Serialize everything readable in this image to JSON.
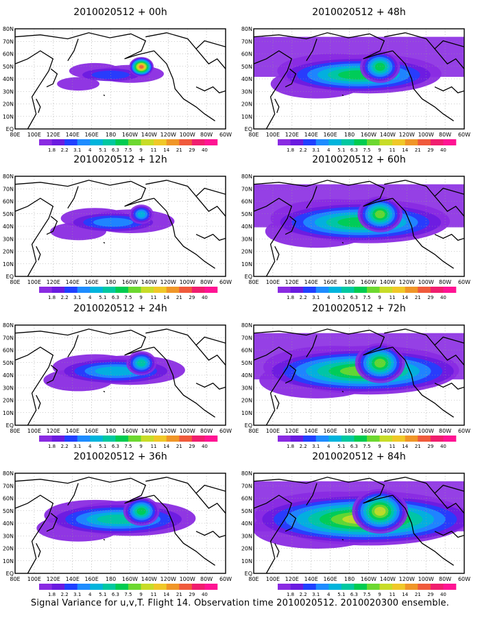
{
  "panels": [
    {
      "title": "2010020512 + 00h",
      "intensity": 0.05
    },
    {
      "title": "2010020512 + 12h",
      "intensity": 0.2
    },
    {
      "title": "2010020512 + 24h",
      "intensity": 0.35
    },
    {
      "title": "2010020512 + 36h",
      "intensity": 0.5
    },
    {
      "title": "2010020512 + 48h",
      "intensity": 0.6
    },
    {
      "title": "2010020512 + 60h",
      "intensity": 0.72
    },
    {
      "title": "2010020512 + 72h",
      "intensity": 0.85
    },
    {
      "title": "2010020512 + 84h",
      "intensity": 1.0
    }
  ],
  "lat_labels": [
    "80N",
    "70N",
    "60N",
    "50N",
    "40N",
    "30N",
    "20N",
    "10N",
    "EQ"
  ],
  "lon_labels": [
    "80E",
    "100E",
    "120E",
    "140E",
    "160E",
    "180",
    "160W",
    "140W",
    "120W",
    "100W",
    "80W",
    "60W"
  ],
  "colorbar": {
    "labels": [
      "1.8",
      "2.2",
      "3.1",
      "4",
      "5.1",
      "6.3",
      "7.5",
      "9",
      "11",
      "14",
      "21",
      "29",
      "40"
    ],
    "colors": [
      "#8a2be2",
      "#6a1be0",
      "#2040ff",
      "#1e8cff",
      "#00b4dc",
      "#00c8a0",
      "#00cc50",
      "#6cd830",
      "#c8dc28",
      "#f0c828",
      "#f09628",
      "#f05a3c",
      "#f01e6e",
      "#ff1493"
    ]
  },
  "caption": "Signal Variance for u,v,T. Flight 14. Observation time 2010020512. 2010020300 ensemble."
}
